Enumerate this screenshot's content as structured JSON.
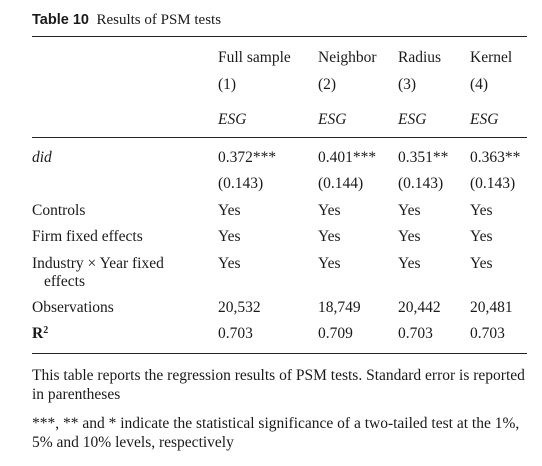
{
  "caption": {
    "label": "Table 10",
    "title": "Results of PSM tests"
  },
  "columns": {
    "names": [
      "Full sample",
      "Neighbor",
      "Radius",
      "Kernel"
    ],
    "numbers": [
      "(1)",
      "(2)",
      "(3)",
      "(4)"
    ],
    "dependent": [
      "ESG",
      "ESG",
      "ESG",
      "ESG"
    ]
  },
  "rows": {
    "did": {
      "label": "did",
      "coef": [
        "0.372***",
        "0.401***",
        "0.351**",
        "0.363**"
      ],
      "se": [
        "(0.143)",
        "(0.144)",
        "(0.143)",
        "(0.143)"
      ]
    },
    "controls": {
      "label": "Controls",
      "values": [
        "Yes",
        "Yes",
        "Yes",
        "Yes"
      ]
    },
    "firm_fe": {
      "label": "Firm fixed effects",
      "values": [
        "Yes",
        "Yes",
        "Yes",
        "Yes"
      ]
    },
    "ind_year_fe": {
      "label_line1": "Industry × Year fixed",
      "label_line2": "effects",
      "values": [
        "Yes",
        "Yes",
        "Yes",
        "Yes"
      ]
    },
    "observations": {
      "label": "Observations",
      "values": [
        "20,532",
        "18,749",
        "20,442",
        "20,481"
      ]
    },
    "r2": {
      "label": "R",
      "label_sup": "2",
      "values": [
        "0.703",
        "0.709",
        "0.703",
        "0.703"
      ]
    }
  },
  "notes": {
    "note1": "This table reports the regression results of PSM tests. Standard error is reported in parentheses",
    "note2": "***, ** and * indicate the statistical significance of a two-tailed test at the 1%, 5% and 10% levels, respectively"
  }
}
